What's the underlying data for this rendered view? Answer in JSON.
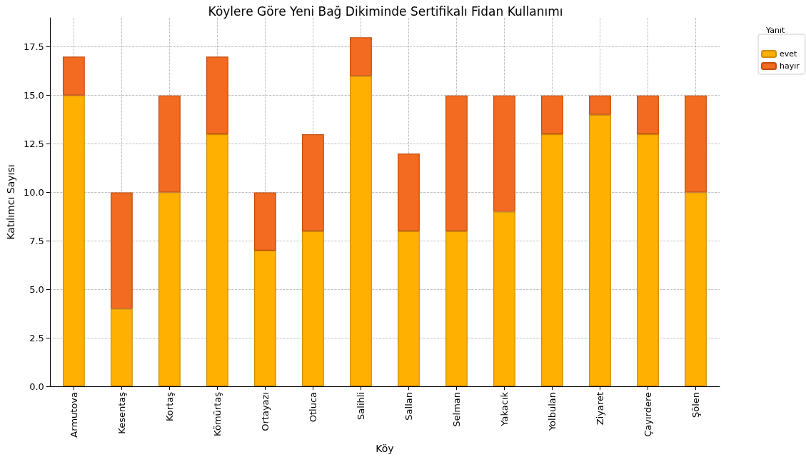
{
  "chart_data": {
    "type": "bar",
    "title": "Köylere Göre Yeni Bağ Dikiminde Sertifikalı Fidan Kullanımı",
    "xlabel": "Köy",
    "ylabel": "Katılımcı Sayısı",
    "legend_title": "Yanıt",
    "categories": [
      "Armutova",
      "Kesentaş",
      "Kortaş",
      "Kömürtaş",
      "Ortayazı",
      "Otluca",
      "Salihli",
      "Sallan",
      "Selman",
      "Yakacık",
      "Yolbulan",
      "Ziyaret",
      "Çayırdere",
      "Şölen"
    ],
    "series": [
      {
        "name": "evet",
        "color": "#ffb000",
        "values": [
          15,
          4,
          10,
          13,
          7,
          8,
          16,
          8,
          8,
          9,
          13,
          14,
          13,
          10
        ]
      },
      {
        "name": "hayır",
        "color": "#f26b21",
        "values": [
          2,
          6,
          5,
          4,
          3,
          5,
          2,
          4,
          7,
          6,
          2,
          1,
          2,
          5
        ]
      }
    ],
    "stacked": true,
    "ylim": [
      0,
      19
    ],
    "yticks": [
      {
        "value": 0,
        "label": "0.0"
      },
      {
        "value": 2.5,
        "label": "2.5"
      },
      {
        "value": 5,
        "label": "5.0"
      },
      {
        "value": 7.5,
        "label": "7.5"
      },
      {
        "value": 10,
        "label": "10.0"
      },
      {
        "value": 12.5,
        "label": "12.5"
      },
      {
        "value": 15,
        "label": "15.0"
      },
      {
        "value": 17.5,
        "label": "17.5"
      }
    ],
    "grid": true,
    "legend": "top right"
  }
}
